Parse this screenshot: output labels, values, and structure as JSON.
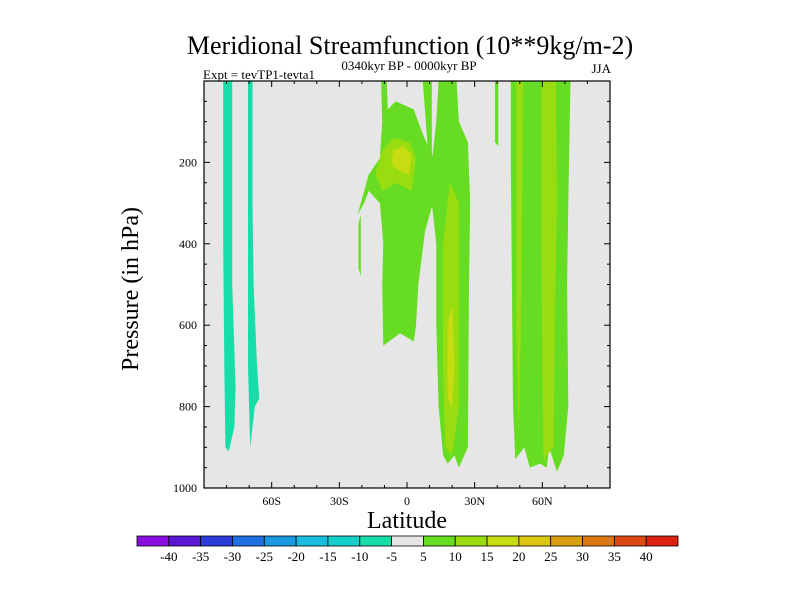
{
  "chart_data": {
    "type": "contour",
    "title": "Meridional Streamfunction (10**9kg/m-2)",
    "subtitle": "0340kyr BP - 0000kyr BP",
    "left_label": "Expt = tevTP1-tevta1",
    "right_label": "JJA",
    "xlabel": "Latitude",
    "ylabel": "Pressure (in hPa)",
    "xlim": [
      -90,
      90
    ],
    "ylim": [
      1000,
      0
    ],
    "x_ticks": [
      {
        "value": -60,
        "label": "60S"
      },
      {
        "value": -30,
        "label": "30S"
      },
      {
        "value": 0,
        "label": "0"
      },
      {
        "value": 30,
        "label": "30N"
      },
      {
        "value": 60,
        "label": "60N"
      }
    ],
    "y_ticks": [
      {
        "value": 200,
        "label": "200"
      },
      {
        "value": 400,
        "label": "400"
      },
      {
        "value": 600,
        "label": "600"
      },
      {
        "value": 800,
        "label": "800"
      },
      {
        "value": 1000,
        "label": "1000"
      }
    ],
    "colorbar": {
      "levels": [
        -40,
        -35,
        -30,
        -25,
        -20,
        -15,
        -10,
        -5,
        5,
        10,
        15,
        20,
        25,
        30,
        35,
        40
      ],
      "labels": [
        "-40",
        "-35",
        "-30",
        "-25",
        "-20",
        "-15",
        "-10",
        "-5",
        "5",
        "10",
        "15",
        "20",
        "25",
        "30",
        "35",
        "40"
      ],
      "colors": [
        "#8a0de0",
        "#5a16d2",
        "#2b3cd9",
        "#1f6fe3",
        "#1a98e0",
        "#18bde0",
        "#13cfca",
        "#17dda8",
        "#e6e6e6",
        "#66dd22",
        "#99dd11",
        "#c8dd11",
        "#ddc611",
        "#dd9e11",
        "#dd7711",
        "#dd4a11",
        "#dd2211"
      ]
    },
    "field_regions": [
      {
        "name": "sh-polar-cell-left",
        "level": -10,
        "points": [
          [
            -81.5,
            0
          ],
          [
            -77.5,
            0
          ],
          [
            -77.5,
            150
          ],
          [
            -77.5,
            500
          ],
          [
            -76,
            750
          ],
          [
            -76.5,
            850
          ],
          [
            -79,
            910
          ],
          [
            -80.5,
            900
          ],
          [
            -81,
            700
          ],
          [
            -81.5,
            400
          ]
        ]
      },
      {
        "name": "sh-polar-cell-right",
        "level": -10,
        "points": [
          [
            -70.5,
            0
          ],
          [
            -68.5,
            0
          ],
          [
            -68.5,
            100
          ],
          [
            -68.5,
            300
          ],
          [
            -68,
            500
          ],
          [
            -66.5,
            700
          ],
          [
            -65.5,
            780
          ],
          [
            -67.5,
            800
          ],
          [
            -69.5,
            900
          ],
          [
            -70.5,
            700
          ]
        ]
      },
      {
        "name": "equatorial-upper-cell",
        "level": 5,
        "points": [
          [
            -11.5,
            0
          ],
          [
            -9,
            0
          ],
          [
            -8.5,
            70
          ],
          [
            -5,
            50
          ],
          [
            3,
            70
          ],
          [
            7,
            130
          ],
          [
            12.5,
            200
          ],
          [
            11.5,
            300
          ],
          [
            8,
            370
          ],
          [
            5,
            500
          ],
          [
            4,
            600
          ],
          [
            3,
            640
          ],
          [
            -3,
            620
          ],
          [
            -10.5,
            650
          ],
          [
            -11,
            500
          ],
          [
            -10.5,
            400
          ],
          [
            -12,
            300
          ],
          [
            -17,
            270
          ],
          [
            -19,
            300
          ],
          [
            -22,
            330
          ],
          [
            -17,
            230
          ],
          [
            -12,
            190
          ],
          [
            -11,
            100
          ]
        ]
      },
      {
        "name": "equatorial-upper-core",
        "level": 10,
        "points": [
          [
            -11,
            170
          ],
          [
            -6,
            140
          ],
          [
            1,
            150
          ],
          [
            4,
            190
          ],
          [
            2,
            270
          ],
          [
            -5,
            250
          ],
          [
            -11,
            270
          ],
          [
            -14,
            230
          ]
        ]
      },
      {
        "name": "equatorial-inner-core",
        "level": 15,
        "points": [
          [
            -6,
            170
          ],
          [
            -2,
            160
          ],
          [
            2,
            180
          ],
          [
            1,
            230
          ],
          [
            -4,
            220
          ],
          [
            -7,
            200
          ]
        ]
      },
      {
        "name": "south-small-blob",
        "level": 5,
        "points": [
          [
            -21.5,
            350
          ],
          [
            -20.5,
            330
          ],
          [
            -20.5,
            480
          ],
          [
            -21.5,
            460
          ]
        ]
      },
      {
        "name": "trade-wind-cell",
        "level": 5,
        "points": [
          [
            7,
            0
          ],
          [
            11,
            0
          ],
          [
            11,
            200
          ],
          [
            13,
            100
          ],
          [
            14,
            0
          ],
          [
            22,
            0
          ],
          [
            23,
            100
          ],
          [
            27,
            150
          ],
          [
            28,
            300
          ],
          [
            27.5,
            500
          ],
          [
            27,
            900
          ],
          [
            23,
            950
          ],
          [
            21,
            920
          ],
          [
            18,
            940
          ],
          [
            16,
            920
          ],
          [
            14,
            800
          ],
          [
            13,
            600
          ],
          [
            13,
            400
          ],
          [
            11,
            300
          ]
        ]
      },
      {
        "name": "trade-wind-core",
        "level": 10,
        "points": [
          [
            16,
            400
          ],
          [
            19,
            250
          ],
          [
            23,
            300
          ],
          [
            23,
            600
          ],
          [
            23,
            800
          ],
          [
            20,
            920
          ],
          [
            17,
            900
          ],
          [
            16,
            700
          ]
        ]
      },
      {
        "name": "trade-wind-inner",
        "level": 15,
        "points": [
          [
            18,
            600
          ],
          [
            20,
            550
          ],
          [
            21,
            700
          ],
          [
            20,
            800
          ],
          [
            18,
            780
          ]
        ]
      },
      {
        "name": "nh-midlat-cell",
        "level": 5,
        "points": [
          [
            46,
            0
          ],
          [
            72.5,
            0
          ],
          [
            71.5,
            300
          ],
          [
            71,
            500
          ],
          [
            71.5,
            800
          ],
          [
            69.5,
            920
          ],
          [
            66.5,
            960
          ],
          [
            63,
            900
          ],
          [
            62,
            950
          ],
          [
            59,
            940
          ],
          [
            54.5,
            950
          ],
          [
            52,
            900
          ],
          [
            48,
            930
          ],
          [
            47,
            800
          ],
          [
            46.5,
            500
          ],
          [
            46,
            200
          ]
        ]
      },
      {
        "name": "nh-midlat-core-left",
        "level": 10,
        "points": [
          [
            48.5,
            0
          ],
          [
            51.5,
            0
          ],
          [
            51,
            300
          ],
          [
            50.5,
            600
          ],
          [
            49.5,
            880
          ],
          [
            48.5,
            600
          ],
          [
            48.5,
            300
          ]
        ]
      },
      {
        "name": "nh-midlat-core-right",
        "level": 10,
        "points": [
          [
            59.5,
            0
          ],
          [
            66,
            0
          ],
          [
            66.5,
            300
          ],
          [
            65.5,
            600
          ],
          [
            65,
            900
          ],
          [
            60.5,
            930
          ],
          [
            60,
            700
          ],
          [
            59.5,
            300
          ]
        ]
      },
      {
        "name": "nh-top-small",
        "level": 5,
        "points": [
          [
            39,
            0
          ],
          [
            40.5,
            0
          ],
          [
            40.5,
            160
          ],
          [
            39,
            150
          ]
        ]
      }
    ]
  }
}
